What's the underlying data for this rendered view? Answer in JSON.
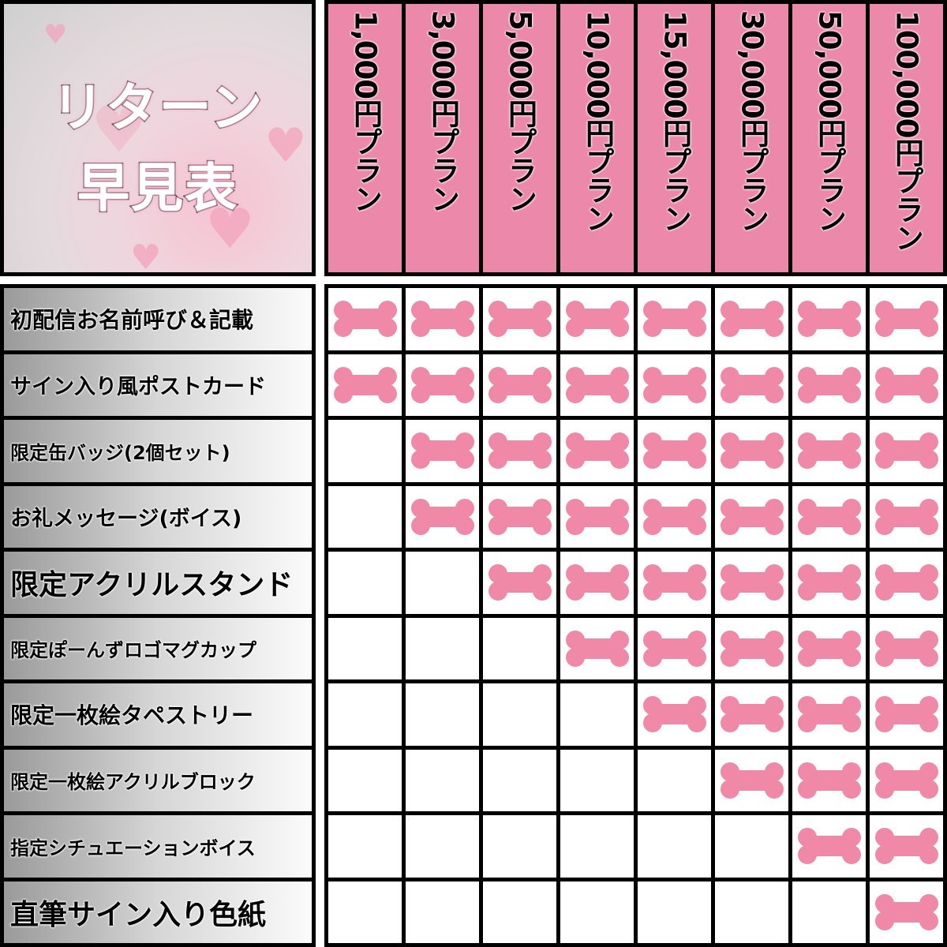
{
  "title": {
    "line1": "リターン",
    "line2": "早見表"
  },
  "plans": [
    "1,000円プラン",
    "3,000円プラン",
    "5,000円プラン",
    "10,000円プラン",
    "15,000円プラン",
    "30,000円プラン",
    "50,000円プラン",
    "100,000円プラン"
  ],
  "rewards": [
    {
      "label": "初配信お名前呼び＆記載",
      "included": [
        true,
        true,
        true,
        true,
        true,
        true,
        true,
        true
      ]
    },
    {
      "label": "サイン入り風ポストカード",
      "included": [
        true,
        true,
        true,
        true,
        true,
        true,
        true,
        true
      ]
    },
    {
      "label": "限定缶バッジ(2個セット)",
      "included": [
        false,
        true,
        true,
        true,
        true,
        true,
        true,
        true
      ]
    },
    {
      "label": "お礼メッセージ(ボイス)",
      "included": [
        false,
        true,
        true,
        true,
        true,
        true,
        true,
        true
      ]
    },
    {
      "label": "限定アクリルスタンド",
      "included": [
        false,
        false,
        true,
        true,
        true,
        true,
        true,
        true
      ]
    },
    {
      "label": "限定ぽーんずロゴマグカップ",
      "included": [
        false,
        false,
        false,
        true,
        true,
        true,
        true,
        true
      ]
    },
    {
      "label": "限定一枚絵タペストリー",
      "included": [
        false,
        false,
        false,
        false,
        true,
        true,
        true,
        true
      ]
    },
    {
      "label": "限定一枚絵アクリルブロック",
      "included": [
        false,
        false,
        false,
        false,
        false,
        true,
        true,
        true
      ]
    },
    {
      "label": "指定シチュエーションボイス",
      "included": [
        false,
        false,
        false,
        false,
        false,
        false,
        true,
        true
      ]
    },
    {
      "label": "直筆サイン入り色紙",
      "included": [
        false,
        false,
        false,
        false,
        false,
        false,
        false,
        true
      ]
    }
  ],
  "colors": {
    "plan_header": "#ec88aa",
    "bone_mark": "#f088a8",
    "grid": "#000000"
  },
  "mark_icon": "bone-icon"
}
